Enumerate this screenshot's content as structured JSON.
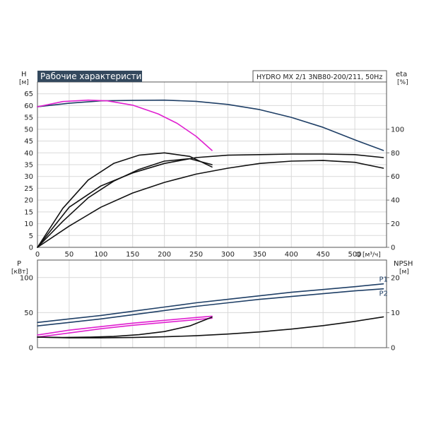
{
  "chart_data": [
    {
      "type": "line",
      "panel": "head-efficiency",
      "title": "Рабочие характеристики",
      "subtitle": "HYDRO MX 2/1 3NB80-200/211, 50Hz",
      "xlabel": "Q [м³/ч]",
      "ylabel_left": "H",
      "ylabel_left_unit": "[м]",
      "ylabel_right": "eta",
      "ylabel_right_unit": "[%]",
      "xlim": [
        0,
        550
      ],
      "ylim_left": [
        0,
        70
      ],
      "ylim_right": [
        0,
        140
      ],
      "x_ticks": [
        "0",
        "50",
        "100",
        "150",
        "200",
        "250",
        "300",
        "350",
        "400",
        "450",
        "500"
      ],
      "y_ticks_left": [
        "0",
        "5",
        "10",
        "15",
        "20",
        "25",
        "30",
        "35",
        "40",
        "45",
        "50",
        "55",
        "60",
        "65"
      ],
      "y_ticks_right": [
        "0",
        "20",
        "40",
        "60",
        "80",
        "100"
      ],
      "grid": true,
      "series": [
        {
          "axis": "left",
          "color": "#1f3f66",
          "x": [
            0,
            50,
            100,
            150,
            200,
            250,
            300,
            350,
            400,
            450,
            500,
            545
          ],
          "y": [
            59.5,
            61.0,
            62.0,
            62.2,
            62.3,
            61.8,
            60.5,
            58.3,
            55.0,
            50.8,
            45.5,
            41.0
          ]
        },
        {
          "axis": "left",
          "color": "#e020d0",
          "x": [
            0,
            40,
            80,
            110,
            150,
            190,
            220,
            250,
            275
          ],
          "y": [
            59.5,
            61.7,
            62.3,
            62.0,
            60.2,
            56.5,
            52.5,
            47.0,
            41.0
          ]
        },
        {
          "axis": "right",
          "color": "#111111",
          "x": [
            0,
            50,
            100,
            150,
            200,
            250,
            300,
            350,
            400,
            450,
            500,
            545
          ],
          "y": [
            0,
            34,
            52,
            63,
            71,
            76,
            78,
            78.5,
            79,
            79,
            78.5,
            76
          ]
        },
        {
          "axis": "right",
          "color": "#111111",
          "x": [
            0,
            50,
            100,
            150,
            200,
            250,
            300,
            350,
            400,
            450,
            500,
            545
          ],
          "y": [
            0,
            18,
            34,
            46,
            55,
            62,
            67,
            71,
            73,
            73.5,
            72,
            67
          ]
        },
        {
          "axis": "right",
          "color": "#111111",
          "x": [
            0,
            40,
            80,
            120,
            160,
            200,
            240,
            275
          ],
          "y": [
            0,
            33,
            57,
            71,
            78,
            80,
            77,
            68
          ]
        },
        {
          "axis": "right",
          "color": "#111111",
          "x": [
            0,
            40,
            80,
            120,
            160,
            200,
            240,
            275
          ],
          "y": [
            0,
            22,
            42,
            56,
            66,
            73,
            75,
            70
          ]
        }
      ]
    },
    {
      "type": "line",
      "panel": "power-npsh",
      "ylabel_left": "P",
      "ylabel_left_unit": "[кВт]",
      "ylabel_right": "NPSH",
      "ylabel_right_unit": "[м]",
      "xlim": [
        0,
        550
      ],
      "ylim_left": [
        0,
        125
      ],
      "ylim_right": [
        0,
        25
      ],
      "y_ticks_left": [
        "0",
        "50",
        "100"
      ],
      "y_ticks_right": [
        "0",
        "10",
        "20"
      ],
      "grid": true,
      "series": [
        {
          "name": "P1",
          "axis": "left",
          "color": "#1f3f66",
          "x": [
            0,
            50,
            100,
            150,
            200,
            250,
            300,
            350,
            400,
            450,
            500,
            545
          ],
          "y": [
            36,
            41,
            46,
            52,
            58,
            64,
            69,
            74,
            79,
            83,
            87,
            91
          ]
        },
        {
          "name": "P2",
          "axis": "left",
          "color": "#1f3f66",
          "x": [
            0,
            50,
            100,
            150,
            200,
            250,
            300,
            350,
            400,
            450,
            500,
            545
          ],
          "y": [
            31,
            36,
            41,
            47,
            53,
            59,
            64,
            69,
            73,
            77,
            81,
            84
          ]
        },
        {
          "axis": "left",
          "color": "#e020d0",
          "x": [
            0,
            50,
            100,
            150,
            200,
            250,
            275
          ],
          "y": [
            18,
            25,
            30,
            35,
            39,
            43,
            45
          ]
        },
        {
          "axis": "left",
          "color": "#e020d0",
          "x": [
            0,
            50,
            100,
            150,
            200,
            250,
            275
          ],
          "y": [
            15,
            21,
            27,
            32,
            36,
            40,
            42
          ]
        },
        {
          "axis": "right",
          "color": "#111111",
          "x": [
            0,
            50,
            100,
            150,
            200,
            250,
            300,
            350,
            400,
            450,
            500,
            545
          ],
          "y": [
            3.0,
            2.8,
            2.8,
            2.9,
            3.1,
            3.4,
            3.9,
            4.5,
            5.3,
            6.3,
            7.5,
            8.8
          ]
        },
        {
          "axis": "right",
          "color": "#111111",
          "x": [
            0,
            40,
            80,
            120,
            160,
            200,
            240,
            275
          ],
          "y": [
            3.0,
            2.9,
            3.0,
            3.2,
            3.7,
            4.6,
            6.2,
            8.7
          ]
        }
      ]
    }
  ]
}
